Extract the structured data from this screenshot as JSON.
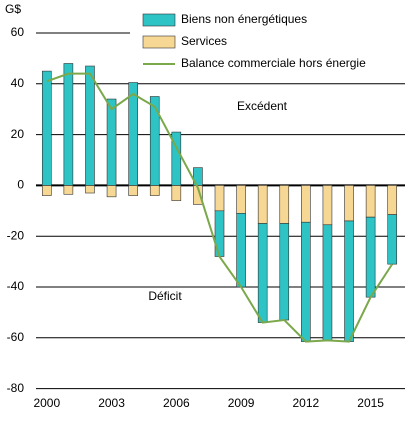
{
  "chart_data": {
    "type": "bar",
    "ylabel": "G$",
    "x": [
      2000,
      2001,
      2002,
      2003,
      2004,
      2005,
      2006,
      2007,
      2008,
      2009,
      2010,
      2011,
      2012,
      2013,
      2014,
      2015,
      2016
    ],
    "xlim": [
      1999.5,
      2016.5
    ],
    "xticks": [
      2000,
      2003,
      2006,
      2009,
      2012,
      2015
    ],
    "ylim": [
      -80,
      70
    ],
    "yticks": [
      -80,
      -60,
      -40,
      -20,
      0,
      20,
      40,
      60
    ],
    "grid": true,
    "stacked": true,
    "series": [
      {
        "name": "Biens non énergétiques",
        "type": "bar",
        "color": "#2ec4c6",
        "values": [
          45,
          48,
          47,
          34,
          40.5,
          35,
          21,
          7,
          -18,
          -29,
          -39,
          -38,
          -47,
          -45.5,
          -47.5,
          -31.5,
          -19.5
        ]
      },
      {
        "name": "Services",
        "type": "bar",
        "color": "#f7d794",
        "values": [
          -4,
          -3.5,
          -3,
          -4.5,
          -4,
          -4,
          -6,
          -7.5,
          -10,
          -11,
          -15,
          -15,
          -14.5,
          -15.5,
          -14,
          -12.5,
          -11.5
        ]
      },
      {
        "name": "Balance commerciale hors énergie",
        "type": "line",
        "color": "#7aa84a",
        "values": [
          41,
          44,
          44,
          30,
          36,
          31,
          15,
          -1,
          -28,
          -40,
          -54,
          -53,
          -61.5,
          -61,
          -61.5,
          -44,
          -31
        ]
      }
    ],
    "annotations": [
      "Excédent",
      "Déficit"
    ]
  }
}
